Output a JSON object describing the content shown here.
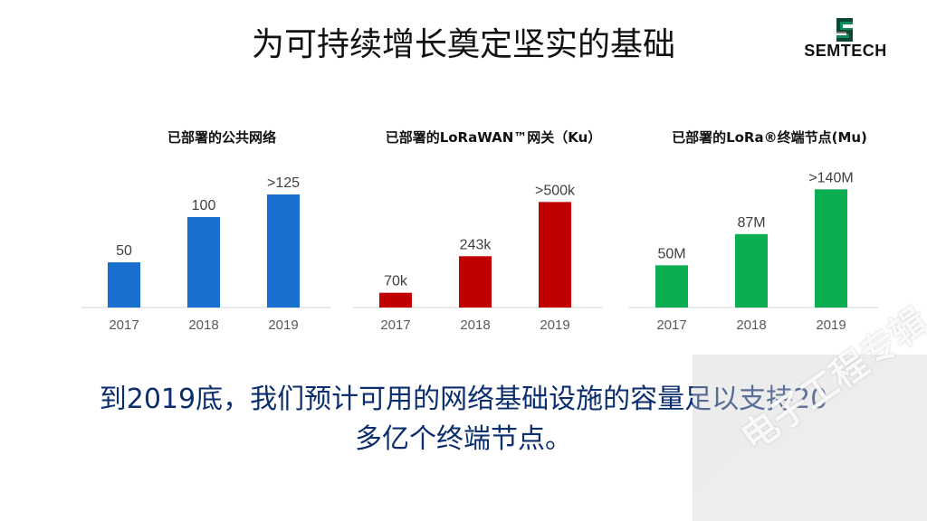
{
  "page": {
    "title": "为可持续增长奠定坚实的基础",
    "logo_text": "SEMTECH",
    "summary_line1": "到2019底，我们预计可用的网络基础设施的容量足以支持20",
    "summary_line2": "多亿个终端节点。",
    "watermark_text": "电子工程专辑"
  },
  "chart_data": [
    {
      "type": "bar",
      "title": "已部署的公共网络",
      "categories": [
        "2017",
        "2018",
        "2019"
      ],
      "values": [
        50,
        100,
        125
      ],
      "data_labels": [
        "50",
        "100",
        ">125"
      ],
      "color": "#1a6fcf",
      "ylim": [
        0,
        140
      ],
      "grid": false
    },
    {
      "type": "bar",
      "title": "已部署的LoRaWAN™网关（Ku）",
      "categories": [
        "2017",
        "2018",
        "2019"
      ],
      "values": [
        70,
        243,
        500
      ],
      "data_labels": [
        "70k",
        "243k",
        ">500k"
      ],
      "color": "#c00000",
      "ylim": [
        0,
        600
      ],
      "grid": false
    },
    {
      "type": "bar",
      "title": "已部署的LoRa®终端节点(Mu)",
      "categories": [
        "2017",
        "2018",
        "2019"
      ],
      "values": [
        50,
        87,
        140
      ],
      "data_labels": [
        "50M",
        "87M",
        ">140M"
      ],
      "color": "#0aad4f",
      "ylim": [
        0,
        150
      ],
      "grid": false
    }
  ]
}
